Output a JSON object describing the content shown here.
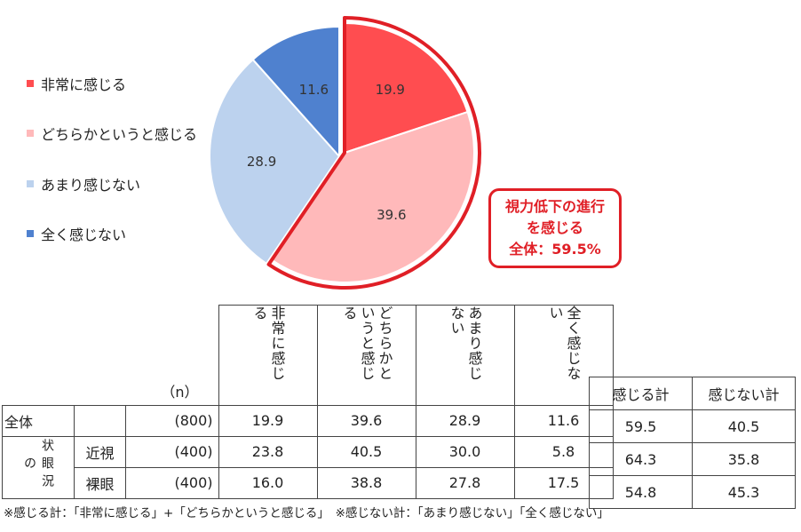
{
  "chart_data": {
    "type": "pie",
    "categories": [
      "非常に感じる",
      "どちらかというと感じる",
      "あまり感じない",
      "全く感じない"
    ],
    "values": [
      19.9,
      39.6,
      28.9,
      11.6
    ],
    "colors": [
      "#ff4d50",
      "#ffb9ba",
      "#bcd2ee",
      "#4f81cf"
    ],
    "highlight": {
      "slices": [
        "非常に感じる",
        "どちらかというと感じる"
      ],
      "color": "#e01f26"
    },
    "callout": [
      "視力低下の進行",
      "を感じる",
      "全体：59.5%"
    ]
  },
  "legend": [
    "非常に感じる",
    "どちらかというと感じる",
    "あまり感じない",
    "全く感じない"
  ],
  "table": {
    "n_label": "（n）",
    "headers": [
      "非常に感じる",
      "どちらかというと感じる",
      "あまり感じない",
      "全く感じない"
    ],
    "group_label": "状眼況の",
    "rows": [
      {
        "label": "全体",
        "sub": "",
        "n": "(800)",
        "values": [
          "19.9",
          "39.6",
          "28.9",
          "11.6"
        ]
      },
      {
        "label": "",
        "sub": "近視",
        "n": "(400)",
        "values": [
          "23.8",
          "40.5",
          "30.0",
          "5.8"
        ]
      },
      {
        "label": "",
        "sub": "裸眼",
        "n": "(400)",
        "values": [
          "16.0",
          "38.8",
          "27.8",
          "17.5"
        ]
      }
    ]
  },
  "summary": {
    "headers": [
      "感じる計",
      "感じない計"
    ],
    "rows": [
      [
        "59.5",
        "40.5"
      ],
      [
        "64.3",
        "35.8"
      ],
      [
        "54.8",
        "45.3"
      ]
    ]
  },
  "note": "※感じる計：「非常に感じる」+「どちらかというと感じる」　※感じない計：「あまり感じない」「全く感じない」"
}
